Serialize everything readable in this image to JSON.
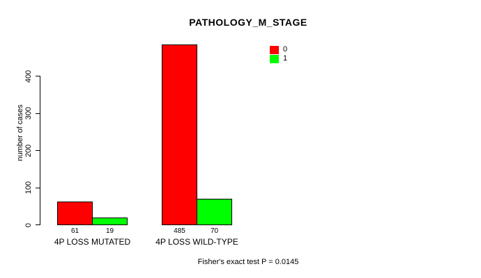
{
  "chart_data": {
    "type": "bar",
    "title": "PATHOLOGY_M_STAGE",
    "ylabel": "number of cases",
    "xlabel": "",
    "categories": [
      "4P LOSS MUTATED",
      "4P LOSS WILD-TYPE"
    ],
    "series": [
      {
        "name": "0",
        "color": "#ff0000",
        "values": [
          61,
          485
        ]
      },
      {
        "name": "1",
        "color": "#00ff00",
        "values": [
          19,
          70
        ]
      }
    ],
    "yticks": [
      0,
      100,
      200,
      300,
      400
    ],
    "ylim": [
      0,
      485
    ],
    "bar_value_labels": [
      [
        61,
        485
      ],
      [
        19,
        70
      ]
    ],
    "grid": "off",
    "legend_position": "top-right",
    "annotation": "Fisher's exact test P = 0.0145"
  }
}
